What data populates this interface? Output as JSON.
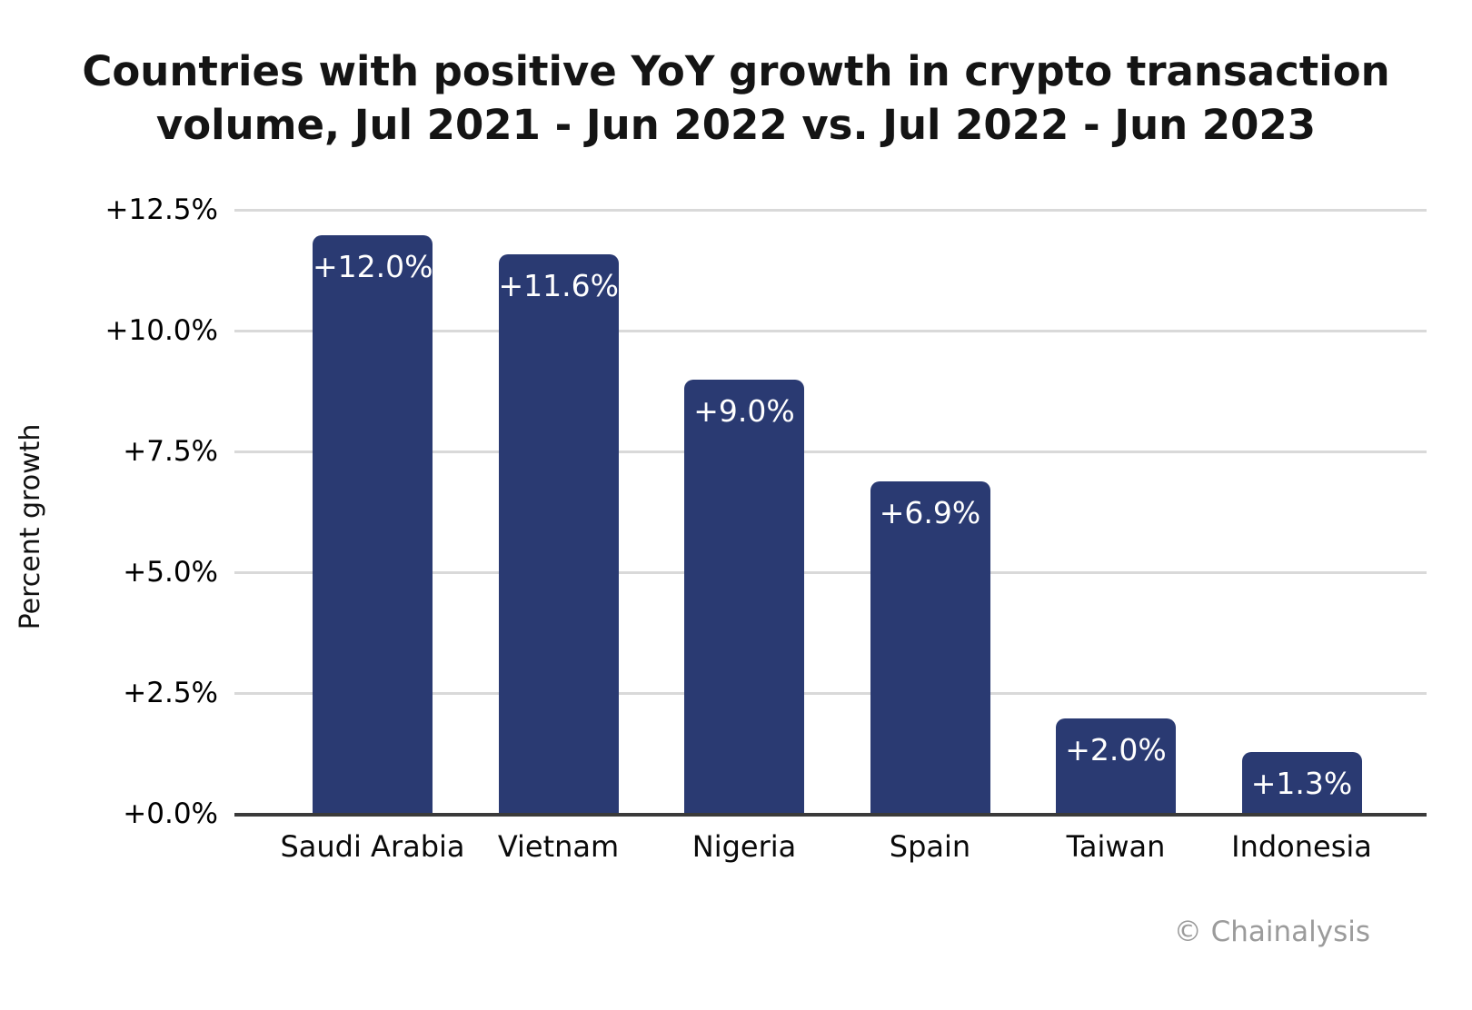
{
  "chart_data": {
    "type": "bar",
    "title": "Countries with positive YoY growth in crypto transaction volume, Jul 2021 - Jun 2022 vs. Jul 2022 - Jun 2023",
    "title_lines": [
      "Countries with positive YoY growth in crypto transaction",
      "volume, Jul 2021 - Jun 2022 vs. Jul 2022 - Jun 2023"
    ],
    "xlabel": "",
    "ylabel": "Percent growth",
    "categories": [
      "Saudi Arabia",
      "Vietnam",
      "Nigeria",
      "Spain",
      "Taiwan",
      "Indonesia"
    ],
    "values": [
      12.0,
      11.6,
      9.0,
      6.9,
      2.0,
      1.3
    ],
    "bar_labels": [
      "+12.0%",
      "+11.6%",
      "+9.0%",
      "+6.9%",
      "+2.0%",
      "+1.3%"
    ],
    "ylim": [
      0,
      12.5
    ],
    "yticks": [
      {
        "value": 0.0,
        "label": "+0.0%"
      },
      {
        "value": 2.5,
        "label": "+2.5%"
      },
      {
        "value": 5.0,
        "label": "+5.0%"
      },
      {
        "value": 7.5,
        "label": "+7.5%"
      },
      {
        "value": 10.0,
        "label": "+10.0%"
      },
      {
        "value": 12.5,
        "label": "+12.5%"
      }
    ],
    "grid": true,
    "legend": null,
    "credit": "© Chainalysis",
    "colors": {
      "bar": "#2a3a72",
      "bar_label": "#ffffff",
      "grid": "#d9d9d9",
      "baseline": "#3a3a3a",
      "title": "#141414",
      "credit": "#9b9b9b",
      "background": "#ffffff"
    }
  }
}
